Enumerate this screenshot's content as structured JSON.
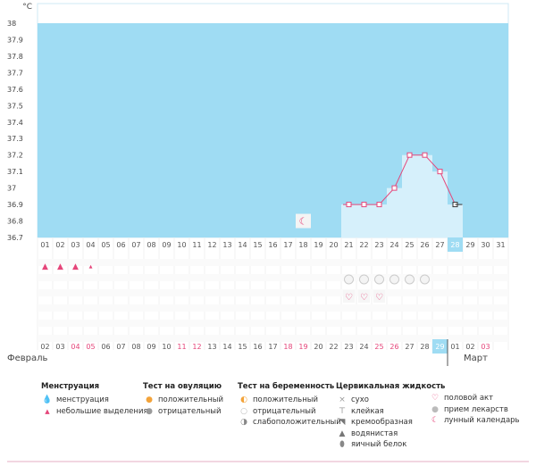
{
  "chart_data": {
    "type": "line",
    "unit_label": "°C",
    "y_ticks": [
      "38",
      "37.9",
      "37.8",
      "37.7",
      "37.6",
      "37.5",
      "37.4",
      "37.3",
      "37.2",
      "37.1",
      "37",
      "36.9",
      "36.8",
      "36.7"
    ],
    "ylim": [
      36.7,
      38
    ],
    "days_top": [
      "01",
      "02",
      "03",
      "04",
      "05",
      "06",
      "07",
      "08",
      "09",
      "10",
      "11",
      "12",
      "13",
      "14",
      "15",
      "16",
      "17",
      "18",
      "19",
      "20",
      "21",
      "22",
      "23",
      "24",
      "25",
      "26",
      "27",
      "28",
      "29",
      "30",
      "31"
    ],
    "current_index": 27,
    "temperature": [
      {
        "i": 20,
        "y": 36.9
      },
      {
        "i": 21,
        "y": 36.9
      },
      {
        "i": 22,
        "y": 36.9
      },
      {
        "i": 23,
        "y": 37.0
      },
      {
        "i": 24,
        "y": 37.2
      },
      {
        "i": 25,
        "y": 37.2
      },
      {
        "i": 26,
        "y": 37.1
      },
      {
        "i": 27,
        "y": 36.9
      }
    ],
    "moon_index": 17,
    "menstruation_indexes": [
      0,
      1,
      2
    ],
    "spotting_indexes": [
      3
    ],
    "pregnancy_test_indexes": [
      20,
      21,
      22,
      23,
      24,
      25
    ],
    "intercourse_indexes": [
      20,
      21,
      22
    ],
    "dates_bottom": [
      {
        "t": "02",
        "red": false
      },
      {
        "t": "03",
        "red": false
      },
      {
        "t": "04",
        "red": true
      },
      {
        "t": "05",
        "red": true
      },
      {
        "t": "06",
        "red": false
      },
      {
        "t": "07",
        "red": false
      },
      {
        "t": "08",
        "red": false
      },
      {
        "t": "09",
        "red": false
      },
      {
        "t": "10",
        "red": false
      },
      {
        "t": "11",
        "red": true
      },
      {
        "t": "12",
        "red": true
      },
      {
        "t": "13",
        "red": false
      },
      {
        "t": "14",
        "red": false
      },
      {
        "t": "15",
        "red": false
      },
      {
        "t": "16",
        "red": false
      },
      {
        "t": "17",
        "red": false
      },
      {
        "t": "18",
        "red": true
      },
      {
        "t": "19",
        "red": true
      },
      {
        "t": "20",
        "red": false
      },
      {
        "t": "22",
        "red": false
      },
      {
        "t": "23",
        "red": false
      },
      {
        "t": "24",
        "red": false
      },
      {
        "t": "25",
        "red": true
      },
      {
        "t": "26",
        "red": true
      },
      {
        "t": "27",
        "red": false
      },
      {
        "t": "28",
        "red": false
      },
      {
        "t": "29",
        "red": false
      },
      {
        "t": "01",
        "red": false
      },
      {
        "t": "02",
        "red": false
      },
      {
        "t": "03",
        "red": true
      }
    ],
    "month_left": "Февраль",
    "month_right": "Март"
  },
  "legend": {
    "menstruation": {
      "title": "Менструация",
      "items": [
        "менструация",
        "небольшие выделения"
      ]
    },
    "ovulation": {
      "title": "Тест на овуляцию",
      "items": [
        "положительный",
        "отрицательный"
      ]
    },
    "pregnancy": {
      "title": "Тест на беременность",
      "items": [
        "положительный",
        "отрицательный",
        "слабоположительный"
      ]
    },
    "cervical": {
      "title": "Цервикальная жидкость",
      "items": [
        "сухо",
        "клейкая",
        "кремообразная",
        "водянистая",
        "яичный белок"
      ]
    },
    "other": {
      "items": [
        "половой акт",
        "прием лекарств",
        "лунный календарь"
      ]
    }
  },
  "colors": {
    "band": "#9fdcf3",
    "bar": "#d6f0fb",
    "line": "#e5467a",
    "accent": "#e5467a",
    "current": "#9fdcf3"
  },
  "icons": [
    "drop-icon",
    "small-drop-icon",
    "sun-icon",
    "grey-sun-icon",
    "test-icon",
    "cross-icon",
    "sticky-icon",
    "cream-icon",
    "water-drop-icon",
    "egg-white-icon",
    "heart-icon",
    "pill-icon",
    "moon-icon"
  ]
}
